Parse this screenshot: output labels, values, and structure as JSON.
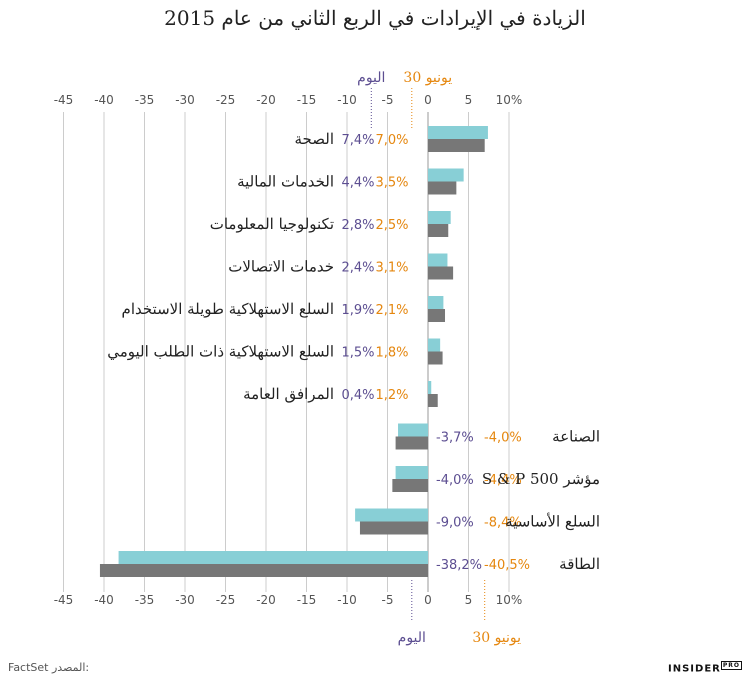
{
  "title": "الزيادة في الإيرادات في الربع الثاني من عام 2015",
  "source_label": "المصدر:",
  "source_value": "FactSet",
  "brand": "INSIDER",
  "brand_badge": "PRO",
  "colors": {
    "today": "#88cfd6",
    "june30": "#777777",
    "today_text": "#5c4e91",
    "june30_text": "#e5870f",
    "grid": "#cccccc"
  },
  "chart_data": {
    "type": "bar",
    "orientation": "horizontal",
    "title": "الزيادة في الإيرادات في الربع الثاني من عام 2015",
    "xlim": [
      -45,
      12
    ],
    "x_ticks": [
      "-45",
      "-40",
      "-35",
      "-30",
      "-25",
      "-20",
      "-15",
      "-10",
      "-5",
      "0",
      "5",
      "10%"
    ],
    "x_tick_values": [
      -45,
      -40,
      -35,
      -30,
      -25,
      -20,
      -15,
      -10,
      -5,
      0,
      5,
      10
    ],
    "grid": true,
    "legend": {
      "today": "اليوم",
      "june30": "30 يونيو"
    },
    "categories": [
      "الصحة",
      "الخدمات المالية",
      "تكنولوجيا المعلومات",
      "خدمات الاتصالات",
      "السلع الاستهلاكية طويلة الاستخدام",
      "السلع الاستهلاكية ذات الطلب اليومي",
      "المرافق العامة",
      "الصناعة",
      "S & P 500 مؤشر",
      "السلع الأساسية",
      "الطاقة"
    ],
    "series": [
      {
        "name": "اليوم",
        "values": [
          7.4,
          4.4,
          2.8,
          2.4,
          1.9,
          1.5,
          0.4,
          -3.7,
          -4.0,
          -9.0,
          -38.2
        ],
        "labels": [
          "7,4%",
          "4,4%",
          "2,8%",
          "2,4%",
          "1,9%",
          "1,5%",
          "0,4%",
          "-3,7%",
          "-4,0%",
          "-9,0%",
          "-38,2%"
        ]
      },
      {
        "name": "30 يونيو",
        "values": [
          7.0,
          3.5,
          2.5,
          3.1,
          2.1,
          1.8,
          1.2,
          -4.0,
          -4.4,
          -8.4,
          -40.5
        ],
        "labels": [
          "7,0%",
          "3,5%",
          "2,5%",
          "3,1%",
          "2,1%",
          "1,8%",
          "1,2%",
          "-4,0%",
          "-4,4%",
          "-8,4%",
          "-40,5%"
        ]
      }
    ]
  }
}
